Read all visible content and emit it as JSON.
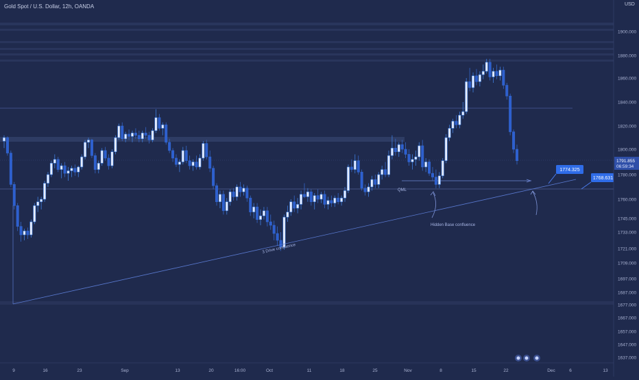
{
  "header": {
    "title": "Gold Spot / U.S. Dollar, 12h, OANDA",
    "currency": "USD"
  },
  "chart_data": {
    "type": "candlestick",
    "y_ticks": [
      1900,
      1880,
      1860,
      1840,
      1820,
      1800,
      1780,
      1760,
      1745,
      1733,
      1721,
      1709,
      1697,
      1687,
      1677,
      1667,
      1657,
      1647,
      1637
    ],
    "y_tick_labels": [
      "1900.000",
      "1880.000",
      "1860.000",
      "1840.000",
      "1820.000",
      "1800.000",
      "1780.000",
      "1760.000",
      "1745.000",
      "1733.000",
      "1721.000",
      "1709.000",
      "1697.000",
      "1687.000",
      "1677.000",
      "1667.000",
      "1657.000",
      "1647.000",
      "1637.000"
    ],
    "x_tick_labels": [
      "9",
      "16",
      "23",
      "Sep",
      "13",
      "20",
      "16:00",
      "Oct",
      "11",
      "18",
      "25",
      "Nov",
      "8",
      "15",
      "22",
      "Dec",
      "6",
      "13"
    ],
    "price_label": "1791.855",
    "countdown_label": "06:59:34",
    "level_boxes": [
      {
        "price": "1774.325"
      },
      {
        "price": "1768.631"
      }
    ],
    "annotations": [
      "QML",
      "Hidden Base confluence",
      "3 Drive confluence"
    ],
    "series": [
      {
        "values": [
          [
            1807,
            1812,
            1801,
            1810
          ],
          [
            1810,
            1811,
            1795,
            1797
          ],
          [
            1797,
            1799,
            1770,
            1772
          ],
          [
            1772,
            1774,
            1752,
            1755
          ],
          [
            1755,
            1757,
            1734,
            1738
          ],
          [
            1738,
            1742,
            1726,
            1731
          ],
          [
            1731,
            1736,
            1727,
            1734
          ],
          [
            1734,
            1737,
            1728,
            1731
          ],
          [
            1731,
            1744,
            1729,
            1742
          ],
          [
            1742,
            1757,
            1740,
            1755
          ],
          [
            1755,
            1762,
            1750,
            1758
          ],
          [
            1758,
            1762,
            1752,
            1760
          ],
          [
            1760,
            1775,
            1758,
            1773
          ],
          [
            1773,
            1782,
            1770,
            1780
          ],
          [
            1780,
            1791,
            1778,
            1789
          ],
          [
            1789,
            1796,
            1785,
            1792
          ],
          [
            1792,
            1794,
            1782,
            1784
          ],
          [
            1784,
            1789,
            1777,
            1787
          ],
          [
            1787,
            1790,
            1778,
            1781
          ],
          [
            1781,
            1786,
            1775,
            1783
          ],
          [
            1783,
            1787,
            1778,
            1785
          ],
          [
            1785,
            1788,
            1779,
            1782
          ],
          [
            1782,
            1787,
            1778,
            1786
          ],
          [
            1786,
            1796,
            1784,
            1794
          ],
          [
            1794,
            1808,
            1792,
            1806
          ],
          [
            1806,
            1810,
            1801,
            1808
          ],
          [
            1808,
            1809,
            1793,
            1795
          ],
          [
            1795,
            1797,
            1781,
            1784
          ],
          [
            1784,
            1791,
            1781,
            1789
          ],
          [
            1789,
            1801,
            1787,
            1799
          ],
          [
            1799,
            1802,
            1791,
            1793
          ],
          [
            1793,
            1796,
            1784,
            1787
          ],
          [
            1787,
            1800,
            1785,
            1798
          ],
          [
            1798,
            1812,
            1796,
            1810
          ],
          [
            1810,
            1822,
            1808,
            1820
          ],
          [
            1820,
            1823,
            1807,
            1809
          ],
          [
            1809,
            1815,
            1806,
            1813
          ],
          [
            1813,
            1817,
            1808,
            1811
          ],
          [
            1811,
            1816,
            1806,
            1814
          ],
          [
            1814,
            1818,
            1809,
            1812
          ],
          [
            1812,
            1816,
            1806,
            1809
          ],
          [
            1809,
            1816,
            1806,
            1814
          ],
          [
            1814,
            1819,
            1809,
            1812
          ],
          [
            1812,
            1815,
            1805,
            1808
          ],
          [
            1808,
            1818,
            1806,
            1816
          ],
          [
            1816,
            1834,
            1814,
            1827
          ],
          [
            1827,
            1830,
            1816,
            1818
          ],
          [
            1818,
            1823,
            1812,
            1821
          ],
          [
            1821,
            1823,
            1804,
            1806
          ],
          [
            1806,
            1809,
            1797,
            1799
          ],
          [
            1799,
            1801,
            1790,
            1793
          ],
          [
            1793,
            1796,
            1786,
            1788
          ],
          [
            1788,
            1792,
            1782,
            1790
          ],
          [
            1790,
            1802,
            1788,
            1799
          ],
          [
            1799,
            1803,
            1789,
            1791
          ],
          [
            1791,
            1795,
            1784,
            1787
          ],
          [
            1787,
            1792,
            1783,
            1790
          ],
          [
            1790,
            1795,
            1784,
            1786
          ],
          [
            1786,
            1796,
            1784,
            1793
          ],
          [
            1793,
            1807,
            1791,
            1805
          ],
          [
            1805,
            1808,
            1792,
            1794
          ],
          [
            1794,
            1799,
            1782,
            1785
          ],
          [
            1785,
            1787,
            1768,
            1771
          ],
          [
            1771,
            1773,
            1755,
            1758
          ],
          [
            1758,
            1767,
            1753,
            1764
          ],
          [
            1764,
            1767,
            1748,
            1751
          ],
          [
            1751,
            1761,
            1748,
            1758
          ],
          [
            1758,
            1768,
            1755,
            1766
          ],
          [
            1766,
            1769,
            1759,
            1762
          ],
          [
            1762,
            1772,
            1759,
            1770
          ],
          [
            1770,
            1774,
            1762,
            1766
          ],
          [
            1766,
            1772,
            1763,
            1769
          ],
          [
            1769,
            1771,
            1758,
            1761
          ],
          [
            1761,
            1763,
            1747,
            1750
          ],
          [
            1750,
            1757,
            1745,
            1754
          ],
          [
            1754,
            1757,
            1741,
            1744
          ],
          [
            1744,
            1752,
            1739,
            1747
          ],
          [
            1747,
            1754,
            1744,
            1751
          ],
          [
            1751,
            1754,
            1738,
            1742
          ],
          [
            1742,
            1748,
            1735,
            1739
          ],
          [
            1739,
            1743,
            1727,
            1732
          ],
          [
            1732,
            1738,
            1723,
            1727
          ],
          [
            1727,
            1733,
            1719,
            1722
          ],
          [
            1722,
            1748,
            1720,
            1746
          ],
          [
            1746,
            1755,
            1742,
            1750
          ],
          [
            1750,
            1760,
            1747,
            1758
          ],
          [
            1758,
            1763,
            1750,
            1753
          ],
          [
            1753,
            1761,
            1749,
            1756
          ],
          [
            1756,
            1767,
            1752,
            1764
          ],
          [
            1764,
            1773,
            1761,
            1762
          ],
          [
            1762,
            1769,
            1758,
            1766
          ],
          [
            1766,
            1768,
            1755,
            1758
          ],
          [
            1758,
            1765,
            1752,
            1763
          ],
          [
            1763,
            1768,
            1757,
            1760
          ],
          [
            1760,
            1766,
            1757,
            1764
          ],
          [
            1764,
            1767,
            1753,
            1756
          ],
          [
            1756,
            1762,
            1752,
            1759
          ],
          [
            1759,
            1763,
            1754,
            1757
          ],
          [
            1757,
            1763,
            1754,
            1761
          ],
          [
            1761,
            1765,
            1756,
            1758
          ],
          [
            1758,
            1763,
            1755,
            1761
          ],
          [
            1761,
            1770,
            1758,
            1767
          ],
          [
            1767,
            1788,
            1765,
            1786
          ],
          [
            1786,
            1792,
            1782,
            1784
          ],
          [
            1784,
            1796,
            1781,
            1791
          ],
          [
            1791,
            1795,
            1780,
            1782
          ],
          [
            1782,
            1784,
            1767,
            1769
          ],
          [
            1769,
            1772,
            1763,
            1766
          ],
          [
            1766,
            1773,
            1762,
            1770
          ],
          [
            1770,
            1779,
            1767,
            1776
          ],
          [
            1776,
            1780,
            1769,
            1772
          ],
          [
            1772,
            1782,
            1769,
            1780
          ],
          [
            1780,
            1787,
            1776,
            1784
          ],
          [
            1784,
            1790,
            1778,
            1780
          ],
          [
            1780,
            1799,
            1778,
            1795
          ],
          [
            1795,
            1812,
            1792,
            1801
          ],
          [
            1801,
            1809,
            1795,
            1798
          ],
          [
            1798,
            1806,
            1794,
            1804
          ],
          [
            1804,
            1808,
            1797,
            1800
          ],
          [
            1800,
            1806,
            1793,
            1796
          ],
          [
            1796,
            1800,
            1787,
            1790
          ],
          [
            1790,
            1796,
            1784,
            1792
          ],
          [
            1792,
            1799,
            1787,
            1794
          ],
          [
            1794,
            1806,
            1791,
            1803
          ],
          [
            1803,
            1808,
            1783,
            1786
          ],
          [
            1786,
            1793,
            1782,
            1790
          ],
          [
            1790,
            1792,
            1779,
            1781
          ],
          [
            1781,
            1786,
            1775,
            1778
          ],
          [
            1778,
            1784,
            1769,
            1772
          ],
          [
            1772,
            1782,
            1769,
            1779
          ],
          [
            1779,
            1793,
            1777,
            1791
          ],
          [
            1791,
            1813,
            1789,
            1810
          ],
          [
            1810,
            1821,
            1807,
            1818
          ],
          [
            1818,
            1826,
            1814,
            1824
          ],
          [
            1824,
            1829,
            1818,
            1821
          ],
          [
            1821,
            1832,
            1818,
            1829
          ],
          [
            1829,
            1840,
            1826,
            1832
          ],
          [
            1832,
            1860,
            1830,
            1857
          ],
          [
            1857,
            1869,
            1849,
            1852
          ],
          [
            1852,
            1865,
            1848,
            1862
          ],
          [
            1862,
            1868,
            1854,
            1857
          ],
          [
            1857,
            1866,
            1853,
            1863
          ],
          [
            1863,
            1872,
            1859,
            1866
          ],
          [
            1866,
            1877,
            1864,
            1874
          ],
          [
            1874,
            1877,
            1858,
            1861
          ],
          [
            1861,
            1869,
            1856,
            1866
          ],
          [
            1866,
            1872,
            1859,
            1862
          ],
          [
            1862,
            1870,
            1858,
            1867
          ],
          [
            1867,
            1870,
            1851,
            1854
          ],
          [
            1854,
            1856,
            1842,
            1845
          ],
          [
            1845,
            1847,
            1812,
            1815
          ],
          [
            1815,
            1817,
            1797,
            1800
          ],
          [
            1800,
            1804,
            1788,
            1791
          ]
        ]
      }
    ]
  }
}
